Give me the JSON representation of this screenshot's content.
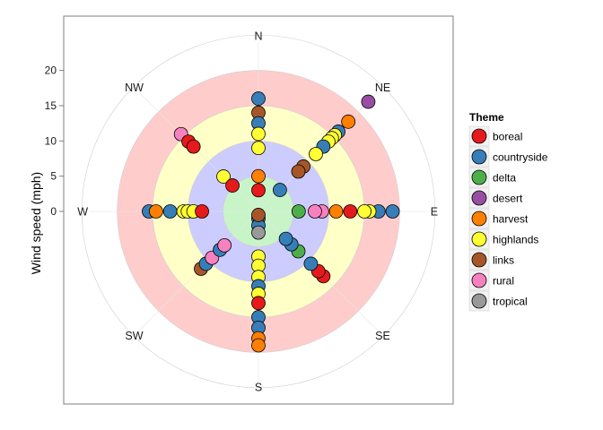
{
  "chart_data": {
    "type": "scatter",
    "coordinate_system": "polar",
    "xlabel": "",
    "ylabel": "Wind speed (mph)",
    "ylim": [
      0,
      24
    ],
    "y_ticks": [
      "0",
      "5",
      "10",
      "15",
      "20"
    ],
    "directions": [
      "N",
      "NE",
      "E",
      "SE",
      "S",
      "SW",
      "W",
      "NW"
    ],
    "grid": true,
    "speed_bands": [
      {
        "from": 0,
        "to": 5,
        "color": "#C8F5C8"
      },
      {
        "from": 5,
        "to": 10,
        "color": "#CCCCFF"
      },
      {
        "from": 10,
        "to": 15,
        "color": "#FFFFC8"
      },
      {
        "from": 15,
        "to": 20,
        "color": "#FFCCCC"
      }
    ],
    "legend": {
      "title": "Theme",
      "position": "right",
      "items": [
        {
          "label": "boreal",
          "color": "#E41A1C"
        },
        {
          "label": "countryside",
          "color": "#377EB8"
        },
        {
          "label": "delta",
          "color": "#4DAF4A"
        },
        {
          "label": "desert",
          "color": "#984EA3"
        },
        {
          "label": "harvest",
          "color": "#FF7F00"
        },
        {
          "label": "highlands",
          "color": "#FFFF33"
        },
        {
          "label": "links",
          "color": "#A65628"
        },
        {
          "label": "rural",
          "color": "#F781BF"
        },
        {
          "label": "tropical",
          "color": "#999999"
        }
      ]
    },
    "points": [
      {
        "direction": "N",
        "speed": 16,
        "theme": "countryside"
      },
      {
        "direction": "N",
        "speed": 14,
        "theme": "links"
      },
      {
        "direction": "N",
        "speed": 12.5,
        "theme": "countryside"
      },
      {
        "direction": "N",
        "speed": 11,
        "theme": "highlands"
      },
      {
        "direction": "N",
        "speed": 9,
        "theme": "highlands"
      },
      {
        "direction": "N",
        "speed": 5,
        "theme": "harvest"
      },
      {
        "direction": "N",
        "speed": 3,
        "theme": "boreal"
      },
      {
        "direction": "NE",
        "speed": 22,
        "theme": "desert"
      },
      {
        "direction": "NE",
        "speed": 18,
        "theme": "harvest"
      },
      {
        "direction": "NE",
        "speed": 16,
        "theme": "countryside"
      },
      {
        "direction": "NE",
        "speed": 15.3,
        "theme": "highlands"
      },
      {
        "direction": "NE",
        "speed": 14.7,
        "theme": "highlands"
      },
      {
        "direction": "NE",
        "speed": 14,
        "theme": "highlands"
      },
      {
        "direction": "NE",
        "speed": 13,
        "theme": "countryside"
      },
      {
        "direction": "NE",
        "speed": 11.5,
        "theme": "highlands"
      },
      {
        "direction": "NE",
        "speed": 9,
        "theme": "links"
      },
      {
        "direction": "NE",
        "speed": 8,
        "theme": "links"
      },
      {
        "direction": "NE",
        "speed": 4.3,
        "theme": "countryside"
      },
      {
        "direction": "E",
        "speed": 19,
        "theme": "countryside"
      },
      {
        "direction": "E",
        "speed": 17,
        "theme": "countryside"
      },
      {
        "direction": "E",
        "speed": 15.7,
        "theme": "highlands"
      },
      {
        "direction": "E",
        "speed": 15,
        "theme": "highlands"
      },
      {
        "direction": "E",
        "speed": 13,
        "theme": "boreal"
      },
      {
        "direction": "E",
        "speed": 11,
        "theme": "harvest"
      },
      {
        "direction": "E",
        "speed": 9,
        "theme": "rural"
      },
      {
        "direction": "E",
        "speed": 8,
        "theme": "rural"
      },
      {
        "direction": "E",
        "speed": 5.7,
        "theme": "delta"
      },
      {
        "direction": "SE",
        "speed": 13,
        "theme": "boreal"
      },
      {
        "direction": "SE",
        "speed": 12,
        "theme": "boreal"
      },
      {
        "direction": "SE",
        "speed": 10.5,
        "theme": "countryside"
      },
      {
        "direction": "SE",
        "speed": 8,
        "theme": "delta"
      },
      {
        "direction": "SE",
        "speed": 6.6,
        "theme": "countryside"
      },
      {
        "direction": "SE",
        "speed": 5.5,
        "theme": "countryside"
      },
      {
        "direction": "S",
        "speed": 1,
        "theme": "countryside"
      },
      {
        "direction": "S",
        "speed": 2,
        "theme": "countryside"
      },
      {
        "direction": "S",
        "speed": 3,
        "theme": "tropical"
      },
      {
        "direction": "S",
        "speed": 6.4,
        "theme": "highlands"
      },
      {
        "direction": "S",
        "speed": 7.7,
        "theme": "highlands"
      },
      {
        "direction": "S",
        "speed": 9.3,
        "theme": "highlands"
      },
      {
        "direction": "S",
        "speed": 10.6,
        "theme": "countryside"
      },
      {
        "direction": "S",
        "speed": 11.7,
        "theme": "highlands"
      },
      {
        "direction": "S",
        "speed": 13,
        "theme": "boreal"
      },
      {
        "direction": "S",
        "speed": 15,
        "theme": "countryside"
      },
      {
        "direction": "S",
        "speed": 16.5,
        "theme": "countryside"
      },
      {
        "direction": "S",
        "speed": 18,
        "theme": "harvest"
      },
      {
        "direction": "S",
        "speed": 19,
        "theme": "harvest"
      },
      {
        "direction": "SW",
        "speed": 11.5,
        "theme": "links"
      },
      {
        "direction": "SW",
        "speed": 10.5,
        "theme": "countryside"
      },
      {
        "direction": "SW",
        "speed": 9.3,
        "theme": "rural"
      },
      {
        "direction": "SW",
        "speed": 7.7,
        "theme": "countryside"
      },
      {
        "direction": "SW",
        "speed": 6.8,
        "theme": "rural"
      },
      {
        "direction": "W",
        "speed": 15.5,
        "theme": "countryside"
      },
      {
        "direction": "W",
        "speed": 14.5,
        "theme": "harvest"
      },
      {
        "direction": "W",
        "speed": 12.5,
        "theme": "countryside"
      },
      {
        "direction": "W",
        "speed": 10.6,
        "theme": "highlands"
      },
      {
        "direction": "W",
        "speed": 10,
        "theme": "highlands"
      },
      {
        "direction": "W",
        "speed": 9.2,
        "theme": "highlands"
      },
      {
        "direction": "W",
        "speed": 8,
        "theme": "boreal"
      },
      {
        "direction": "NW",
        "speed": 15.5,
        "theme": "rural"
      },
      {
        "direction": "NW",
        "speed": 14,
        "theme": "boreal"
      },
      {
        "direction": "NW",
        "speed": 13,
        "theme": "boreal"
      },
      {
        "direction": "NW",
        "speed": 7,
        "theme": "highlands"
      },
      {
        "direction": "NW",
        "speed": 5.2,
        "theme": "boreal"
      },
      {
        "direction": "S",
        "speed": 0.5,
        "theme": "links"
      }
    ]
  }
}
